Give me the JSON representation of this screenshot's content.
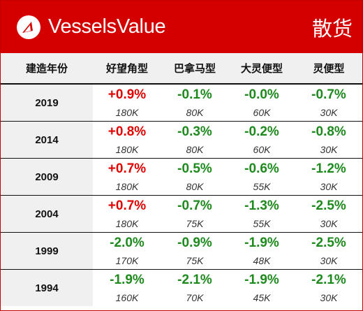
{
  "header": {
    "brand": "VesselsValue",
    "category": "散货",
    "logo_icon": "vesselsvalue-logo-icon"
  },
  "colors": {
    "header_bg": "#d40000",
    "positive": "#e00000",
    "negative": "#1e8a1e",
    "header_row_bg": "#f0f0f0"
  },
  "columns": [
    "建造年份",
    "好望角型",
    "巴拿马型",
    "大灵便型",
    "灵便型"
  ],
  "rows": [
    {
      "year": "2019",
      "cells": [
        {
          "change": "+0.9%",
          "size": "180K"
        },
        {
          "change": "-0.1%",
          "size": "80K"
        },
        {
          "change": "-0.0%",
          "size": "60K"
        },
        {
          "change": "-0.7%",
          "size": "30K"
        }
      ]
    },
    {
      "year": "2014",
      "cells": [
        {
          "change": "+0.8%",
          "size": "180K"
        },
        {
          "change": "-0.3%",
          "size": "80K"
        },
        {
          "change": "-0.2%",
          "size": "60K"
        },
        {
          "change": "-0.8%",
          "size": "30K"
        }
      ]
    },
    {
      "year": "2009",
      "cells": [
        {
          "change": "+0.7%",
          "size": "180K"
        },
        {
          "change": "-0.5%",
          "size": "80K"
        },
        {
          "change": "-0.6%",
          "size": "55K"
        },
        {
          "change": "-1.2%",
          "size": "30K"
        }
      ]
    },
    {
      "year": "2004",
      "cells": [
        {
          "change": "+0.7%",
          "size": "180K"
        },
        {
          "change": "-0.7%",
          "size": "75K"
        },
        {
          "change": "-1.3%",
          "size": "55K"
        },
        {
          "change": "-2.5%",
          "size": "30K"
        }
      ]
    },
    {
      "year": "1999",
      "cells": [
        {
          "change": "-2.0%",
          "size": "170K"
        },
        {
          "change": "-0.9%",
          "size": "75K"
        },
        {
          "change": "-1.9%",
          "size": "48K"
        },
        {
          "change": "-2.5%",
          "size": "30K"
        }
      ]
    },
    {
      "year": "1994",
      "cells": [
        {
          "change": "-1.9%",
          "size": "160K"
        },
        {
          "change": "-2.1%",
          "size": "70K"
        },
        {
          "change": "-1.9%",
          "size": "45K"
        },
        {
          "change": "-2.1%",
          "size": "30K"
        }
      ]
    }
  ]
}
